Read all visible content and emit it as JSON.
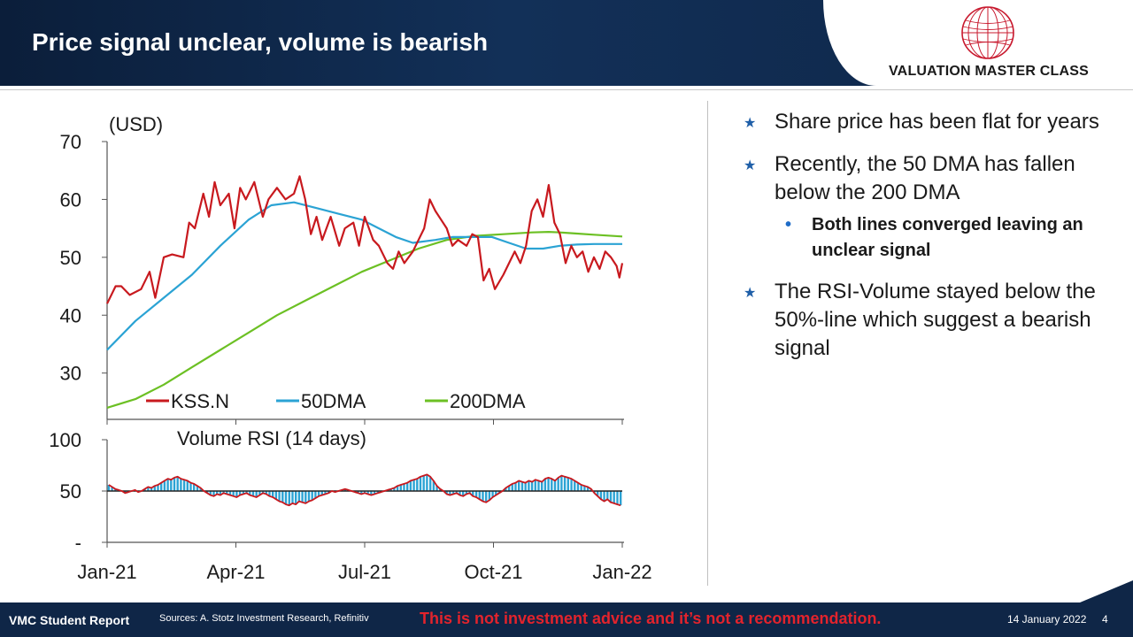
{
  "header": {
    "title": "Price signal unclear, volume is bearish",
    "brand": "VALUATION MASTER CLASS"
  },
  "bullets": [
    {
      "text": "Share price has been flat for years"
    },
    {
      "text": "Recently, the 50 DMA has fallen below the 200 DMA",
      "sub": "Both lines converged leaving an unclear signal"
    },
    {
      "text": "The RSI-Volume stayed below the 50%-line which suggest a bearish signal"
    }
  ],
  "footer": {
    "report": "VMC Student Report",
    "sources": "Sources: A. Stotz Investment Research, Refinitiv",
    "disclaimer": "This is not investment advice and it’s not a recommendation.",
    "date": "14 January 2022",
    "page": "4"
  },
  "colors": {
    "kss": "#c8191e",
    "dma50": "#2ba3d4",
    "dma200": "#6cc024",
    "rsi_bar": "#2ba3d4",
    "rsi_line": "#c8191e",
    "accent": "#1f5fa8"
  },
  "chart_data": [
    {
      "type": "line",
      "ylabel": "(USD)",
      "ylim": [
        22,
        70
      ],
      "yticks": [
        30,
        40,
        50,
        60,
        70
      ],
      "xticks": [
        "Jan-21",
        "Apr-21",
        "Jul-21",
        "Oct-21",
        "Jan-22"
      ],
      "legend_placement": "bottom",
      "series": [
        {
          "name": "KSS.N",
          "color": "#c8191e",
          "points": [
            [
              0,
              42
            ],
            [
              3,
              45
            ],
            [
              5,
              45
            ],
            [
              8,
              43.5
            ],
            [
              12,
              44.5
            ],
            [
              15,
              47.5
            ],
            [
              17,
              43
            ],
            [
              20,
              50
            ],
            [
              23,
              50.5
            ],
            [
              27,
              50
            ],
            [
              29,
              56
            ],
            [
              31,
              55
            ],
            [
              34,
              61
            ],
            [
              36,
              57
            ],
            [
              38,
              63
            ],
            [
              40,
              59
            ],
            [
              43,
              61
            ],
            [
              45,
              55
            ],
            [
              47,
              62
            ],
            [
              49,
              60
            ],
            [
              52,
              63
            ],
            [
              55,
              57
            ],
            [
              57,
              60
            ],
            [
              60,
              62
            ],
            [
              63,
              60
            ],
            [
              66,
              61
            ],
            [
              68,
              64
            ],
            [
              70,
              60
            ],
            [
              72,
              54
            ],
            [
              74,
              57
            ],
            [
              76,
              53
            ],
            [
              79,
              57
            ],
            [
              82,
              52
            ],
            [
              84,
              55
            ],
            [
              87,
              56
            ],
            [
              89,
              52
            ],
            [
              91,
              57
            ],
            [
              94,
              53
            ],
            [
              96,
              52
            ],
            [
              99,
              49
            ],
            [
              101,
              48
            ],
            [
              103,
              51
            ],
            [
              105,
              49
            ],
            [
              108,
              51
            ],
            [
              110,
              53
            ],
            [
              112,
              55
            ],
            [
              114,
              60
            ],
            [
              116,
              58
            ],
            [
              118,
              56.5
            ],
            [
              120,
              55
            ],
            [
              122,
              52
            ],
            [
              124,
              53
            ],
            [
              127,
              52
            ],
            [
              129,
              54
            ],
            [
              131,
              53.5
            ],
            [
              133,
              46
            ],
            [
              135,
              48
            ],
            [
              137,
              44.5
            ],
            [
              140,
              47
            ],
            [
              142,
              49
            ],
            [
              144,
              51
            ],
            [
              146,
              49
            ],
            [
              148,
              52
            ],
            [
              150,
              58
            ],
            [
              152,
              60
            ],
            [
              154,
              57
            ],
            [
              156,
              62.5
            ],
            [
              158,
              56
            ],
            [
              160,
              54
            ],
            [
              162,
              49
            ],
            [
              164,
              52
            ],
            [
              166,
              50
            ],
            [
              168,
              51
            ],
            [
              170,
              47.5
            ],
            [
              172,
              50
            ],
            [
              174,
              48
            ],
            [
              176,
              51
            ],
            [
              178,
              50
            ],
            [
              180,
              48.5
            ],
            [
              181,
              46.5
            ],
            [
              182,
              49
            ]
          ]
        },
        {
          "name": "50DMA",
          "color": "#2ba3d4",
          "points": [
            [
              0,
              34
            ],
            [
              10,
              39
            ],
            [
              20,
              43
            ],
            [
              30,
              47
            ],
            [
              40,
              52
            ],
            [
              50,
              56.5
            ],
            [
              58,
              59
            ],
            [
              66,
              59.5
            ],
            [
              74,
              58.5
            ],
            [
              82,
              57.5
            ],
            [
              90,
              56.5
            ],
            [
              96,
              55
            ],
            [
              102,
              53.5
            ],
            [
              108,
              52.5
            ],
            [
              116,
              53
            ],
            [
              122,
              53.5
            ],
            [
              128,
              53.5
            ],
            [
              136,
              53.5
            ],
            [
              142,
              52.5
            ],
            [
              148,
              51.5
            ],
            [
              154,
              51.5
            ],
            [
              160,
              52
            ],
            [
              166,
              52.2
            ],
            [
              172,
              52.3
            ],
            [
              182,
              52.3
            ]
          ]
        },
        {
          "name": "200DMA",
          "color": "#6cc024",
          "points": [
            [
              0,
              24
            ],
            [
              10,
              25.5
            ],
            [
              20,
              28
            ],
            [
              30,
              31
            ],
            [
              40,
              34
            ],
            [
              50,
              37
            ],
            [
              60,
              40
            ],
            [
              70,
              42.5
            ],
            [
              80,
              45
            ],
            [
              90,
              47.5
            ],
            [
              100,
              49.5
            ],
            [
              110,
              51.5
            ],
            [
              120,
              53
            ],
            [
              130,
              53.7
            ],
            [
              140,
              54
            ],
            [
              150,
              54.3
            ],
            [
              156,
              54.4
            ],
            [
              160,
              54.3
            ],
            [
              166,
              54.1
            ],
            [
              172,
              53.9
            ],
            [
              182,
              53.6
            ]
          ]
        }
      ]
    },
    {
      "type": "bar",
      "title": "Volume RSI (14 days)",
      "ylim": [
        0,
        100
      ],
      "ytick_labels": [
        {
          "value": 100,
          "label": "100"
        },
        {
          "value": 50,
          "label": "50"
        },
        {
          "value": 0,
          "label": "-"
        }
      ],
      "baseline": 50,
      "xticks": [
        "Jan-21",
        "Apr-21",
        "Jul-21",
        "Oct-21",
        "Jan-22"
      ],
      "values": [
        56,
        54,
        52,
        51,
        50,
        48,
        49,
        50,
        51,
        49,
        50,
        52,
        54,
        53,
        55,
        56,
        58,
        60,
        62,
        61,
        63,
        64,
        62,
        61,
        60,
        58,
        57,
        55,
        53,
        50,
        48,
        46,
        45,
        47,
        46,
        48,
        47,
        46,
        45,
        44,
        46,
        47,
        48,
        46,
        45,
        44,
        46,
        48,
        47,
        45,
        44,
        42,
        40,
        39,
        37,
        36,
        38,
        37,
        40,
        39,
        38,
        40,
        41,
        43,
        45,
        46,
        47,
        48,
        50,
        49,
        50,
        51,
        52,
        51,
        50,
        49,
        48,
        47,
        48,
        47,
        46,
        47,
        48,
        49,
        50,
        51,
        52,
        53,
        55,
        56,
        57,
        58,
        60,
        61,
        62,
        64,
        65,
        66,
        64,
        60,
        55,
        52,
        50,
        47,
        46,
        47,
        48,
        46,
        45,
        47,
        48,
        45,
        44,
        42,
        40,
        39,
        41,
        44,
        46,
        48,
        50,
        53,
        55,
        57,
        58,
        60,
        59,
        58,
        60,
        59,
        61,
        60,
        59,
        62,
        63,
        62,
        60,
        63,
        65,
        64,
        63,
        62,
        60,
        58,
        56,
        55,
        54,
        52,
        48,
        45,
        42,
        40,
        42,
        39,
        38,
        37,
        36
      ]
    }
  ]
}
